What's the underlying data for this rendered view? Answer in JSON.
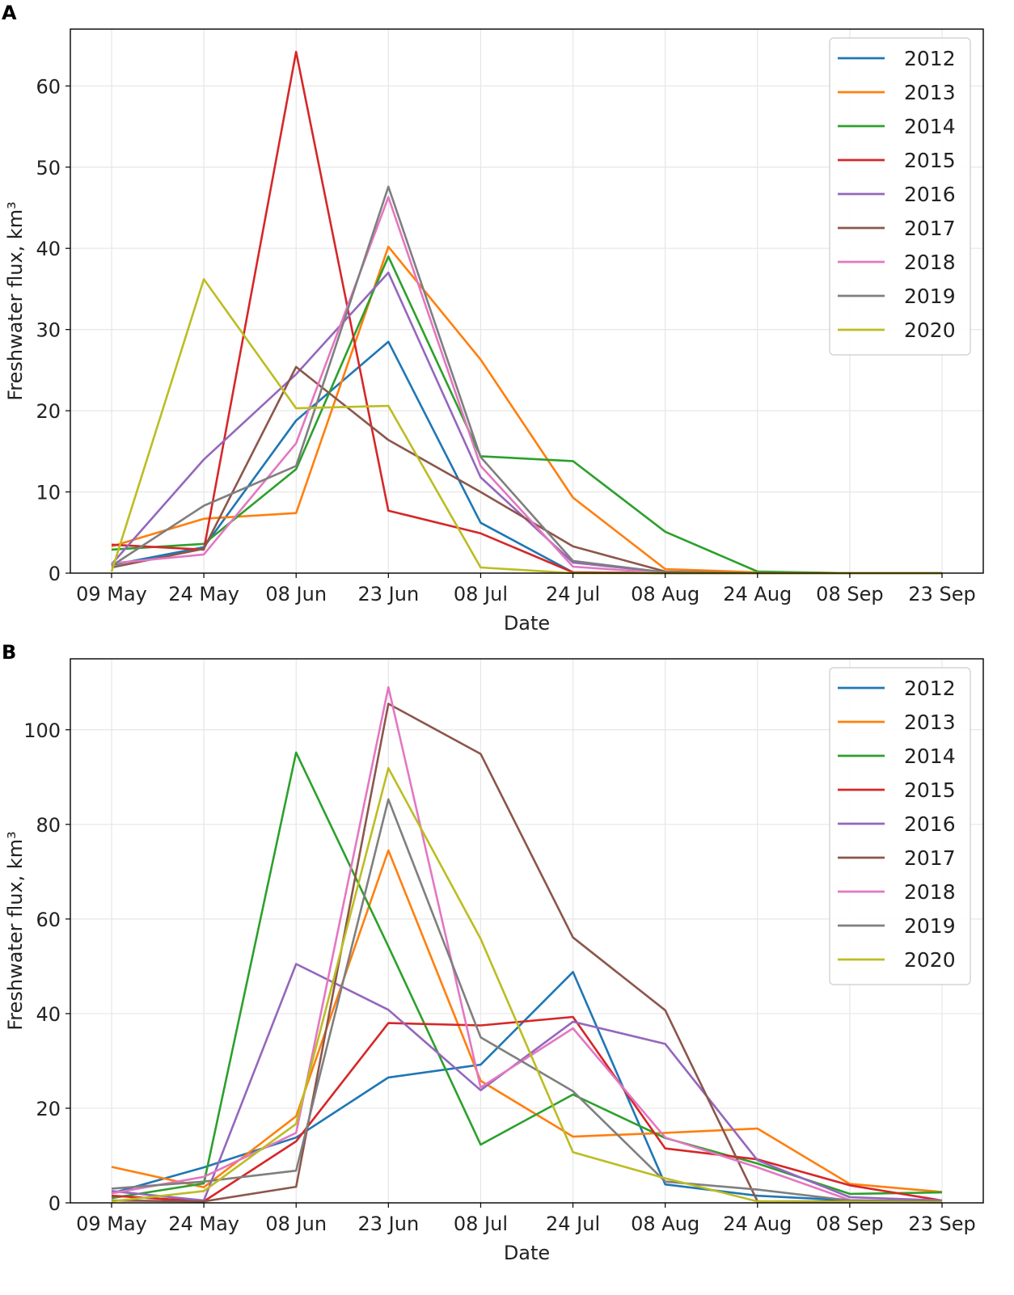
{
  "chart_data": [
    {
      "type": "line",
      "panel": "A",
      "xlabel": "Date",
      "ylabel": "Freshwater flux, km³",
      "categories": [
        "09 May",
        "24 May",
        "08 Jun",
        "23 Jun",
        "08 Jul",
        "24 Jul",
        "08 Aug",
        "24 Aug",
        "08 Sep",
        "23 Sep"
      ],
      "yticks": [
        0,
        10,
        20,
        30,
        40,
        50,
        60
      ],
      "ylim": [
        0,
        67
      ],
      "grid": true,
      "legend_position": "top-right",
      "series": [
        {
          "name": "2012",
          "color": "#1f77b4",
          "values": [
            1.0,
            3.2,
            18.8,
            28.5,
            6.2,
            0.1,
            0.0,
            0.0,
            0.0,
            0.0
          ]
        },
        {
          "name": "2013",
          "color": "#ff7f0e",
          "values": [
            3.3,
            6.7,
            7.4,
            40.2,
            26.3,
            9.3,
            0.5,
            0.1,
            0.0,
            0.0
          ]
        },
        {
          "name": "2014",
          "color": "#2ca02c",
          "values": [
            2.9,
            3.6,
            12.8,
            39.0,
            14.4,
            13.8,
            5.1,
            0.2,
            0.0,
            0.0
          ]
        },
        {
          "name": "2015",
          "color": "#d62728",
          "values": [
            3.5,
            2.9,
            64.2,
            7.7,
            4.9,
            0.1,
            0.0,
            0.0,
            0.0,
            0.0
          ]
        },
        {
          "name": "2016",
          "color": "#9467bd",
          "values": [
            1.1,
            14.0,
            24.5,
            37.0,
            11.8,
            1.3,
            0.1,
            0.0,
            0.0,
            0.0
          ]
        },
        {
          "name": "2017",
          "color": "#8c564b",
          "values": [
            0.7,
            3.0,
            25.4,
            16.4,
            10.0,
            3.3,
            0.2,
            0.0,
            0.0,
            0.0
          ]
        },
        {
          "name": "2018",
          "color": "#e377c2",
          "values": [
            1.2,
            2.3,
            16.0,
            46.3,
            13.2,
            0.8,
            0.0,
            0.0,
            0.0,
            0.0
          ]
        },
        {
          "name": "2019",
          "color": "#7f7f7f",
          "values": [
            0.9,
            8.3,
            13.2,
            47.6,
            14.3,
            1.5,
            0.1,
            0.0,
            0.0,
            0.0
          ]
        },
        {
          "name": "2020",
          "color": "#bcbd22",
          "values": [
            0.2,
            36.2,
            20.3,
            20.6,
            0.7,
            0.0,
            0.0,
            0.0,
            0.0,
            0.0
          ]
        }
      ]
    },
    {
      "type": "line",
      "panel": "B",
      "xlabel": "Date",
      "ylabel": "Freshwater flux, km³",
      "categories": [
        "09 May",
        "24 May",
        "08 Jun",
        "23 Jun",
        "08 Jul",
        "24 Jul",
        "08 Aug",
        "24 Aug",
        "08 Sep",
        "23 Sep"
      ],
      "yticks": [
        0,
        20,
        40,
        60,
        80,
        100
      ],
      "ylim": [
        0,
        115
      ],
      "grid": true,
      "legend_position": "top-right",
      "series": [
        {
          "name": "2012",
          "color": "#1f77b4",
          "values": [
            2.0,
            7.5,
            13.8,
            26.5,
            29.2,
            48.8,
            3.9,
            1.5,
            0.5,
            0.3
          ]
        },
        {
          "name": "2013",
          "color": "#ff7f0e",
          "values": [
            7.6,
            3.3,
            18.3,
            74.5,
            25.8,
            14.0,
            14.8,
            15.7,
            4.0,
            2.3
          ]
        },
        {
          "name": "2014",
          "color": "#2ca02c",
          "values": [
            1.0,
            4.1,
            95.2,
            54.2,
            12.3,
            22.9,
            13.7,
            8.3,
            1.9,
            2.2
          ]
        },
        {
          "name": "2015",
          "color": "#d62728",
          "values": [
            1.5,
            0.3,
            13.0,
            38.0,
            37.5,
            39.3,
            11.5,
            9.2,
            3.7,
            0.5
          ]
        },
        {
          "name": "2016",
          "color": "#9467bd",
          "values": [
            2.5,
            0.5,
            50.5,
            40.8,
            23.8,
            38.3,
            33.6,
            9.0,
            1.2,
            0.5
          ]
        },
        {
          "name": "2017",
          "color": "#8c564b",
          "values": [
            0.5,
            0.3,
            3.4,
            105.5,
            94.9,
            56.1,
            40.7,
            0.3,
            0.3,
            0.2
          ]
        },
        {
          "name": "2018",
          "color": "#e377c2",
          "values": [
            2.0,
            5.5,
            14.8,
            109.0,
            24.4,
            36.9,
            13.8,
            7.5,
            0.6,
            0.3
          ]
        },
        {
          "name": "2019",
          "color": "#7f7f7f",
          "values": [
            3.0,
            4.5,
            6.8,
            85.3,
            35.0,
            23.6,
            4.5,
            2.8,
            0.5,
            0.3
          ]
        },
        {
          "name": "2020",
          "color": "#bcbd22",
          "values": [
            0.3,
            2.5,
            16.7,
            91.9,
            55.8,
            10.7,
            5.2,
            0.3,
            0.2,
            0.1
          ]
        }
      ]
    }
  ],
  "panels": {
    "a": {
      "letter": "A"
    },
    "b": {
      "letter": "B"
    }
  }
}
